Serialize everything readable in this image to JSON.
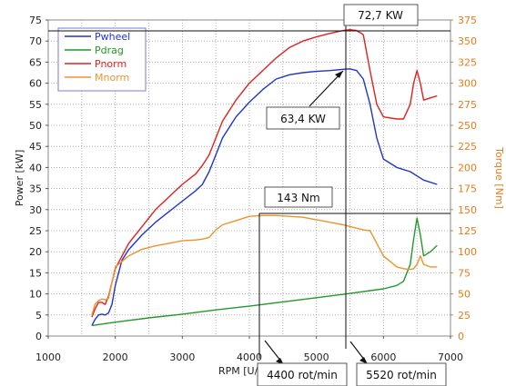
{
  "chart_data": {
    "type": "line",
    "xlabel": "RPM [U/",
    "ylabel": "Power [kW]",
    "y2label": "Torque [Nm]",
    "xlim": [
      1000,
      7000
    ],
    "ylim": [
      0,
      75
    ],
    "y2lim": [
      0,
      375
    ],
    "xticks": [
      "1000",
      "2000",
      "3000",
      "4000",
      "5000",
      "6000",
      "7000"
    ],
    "yticks": [
      "0",
      "5",
      "10",
      "15",
      "20",
      "25",
      "30",
      "35",
      "40",
      "45",
      "50",
      "55",
      "60",
      "65",
      "70",
      "75"
    ],
    "y2ticks": [
      "0",
      "25",
      "50",
      "75",
      "100",
      "125",
      "150",
      "175",
      "200",
      "225",
      "250",
      "275",
      "300",
      "325",
      "350",
      "375"
    ],
    "grid": true,
    "legend_position": "top-left",
    "series": [
      {
        "name": "Pwheel",
        "color": "#2233cc",
        "axis": "left",
        "x": [
          1650,
          1700,
          1750,
          1800,
          1850,
          1900,
          1950,
          2000,
          2100,
          2200,
          2400,
          2600,
          2800,
          3000,
          3200,
          3300,
          3400,
          3500,
          3600,
          3800,
          4000,
          4200,
          4400,
          4600,
          4800,
          5000,
          5200,
          5400,
          5500,
          5600,
          5700,
          5800,
          5900,
          6000,
          6200,
          6400,
          6600,
          6800
        ],
        "y": [
          2.5,
          4,
          5,
          5.2,
          5,
          5.5,
          7.5,
          12,
          18,
          20.5,
          24,
          27,
          29.5,
          32,
          34.5,
          36,
          39,
          43,
          47,
          52,
          55.5,
          58.5,
          61,
          62,
          62.5,
          62.8,
          63,
          63.3,
          63.4,
          63,
          61,
          55,
          47,
          42,
          40,
          39,
          37,
          36
        ]
      },
      {
        "name": "Pdrag",
        "color": "#22992a",
        "axis": "left",
        "x": [
          1650,
          2000,
          2500,
          3000,
          3500,
          4000,
          4500,
          5000,
          5500,
          6000,
          6200,
          6300,
          6400,
          6450,
          6500,
          6550,
          6600,
          6700,
          6800
        ],
        "y": [
          2.5,
          3.3,
          4.3,
          5.2,
          6.2,
          7.1,
          8.1,
          9.1,
          10.1,
          11.2,
          12,
          13,
          17,
          23,
          28,
          24,
          19,
          20,
          21.5
        ]
      },
      {
        "name": "Pnorm",
        "color": "#e02020",
        "axis": "left",
        "x": [
          1650,
          1700,
          1750,
          1800,
          1850,
          1900,
          2000,
          2200,
          2400,
          2600,
          2800,
          3000,
          3200,
          3300,
          3400,
          3500,
          3600,
          3800,
          4000,
          4200,
          4400,
          4600,
          4800,
          5000,
          5200,
          5400,
          5500,
          5600,
          5700,
          5800,
          5900,
          6000,
          6200,
          6300,
          6400,
          6450,
          6500,
          6550,
          6600,
          6700,
          6800
        ],
        "y": [
          4.5,
          6.5,
          8,
          8,
          7.5,
          9.5,
          16,
          22,
          26,
          30,
          33,
          36,
          38.5,
          40.5,
          43,
          47,
          51,
          56,
          60,
          63,
          66,
          68.5,
          70,
          71,
          71.8,
          72.5,
          72.7,
          72.5,
          71.5,
          63,
          55,
          52,
          51.5,
          51.5,
          55,
          60,
          63,
          60,
          56,
          56.5,
          57
        ]
      },
      {
        "name": "Mnorm",
        "color": "#f0922c",
        "axis": "right",
        "x": [
          1650,
          1700,
          1750,
          1800,
          1850,
          1900,
          2000,
          2200,
          2400,
          2600,
          2800,
          3000,
          3200,
          3300,
          3400,
          3500,
          3600,
          3800,
          4000,
          4200,
          4400,
          4600,
          4800,
          5000,
          5200,
          5400,
          5500,
          5600,
          5700,
          5800,
          5900,
          6000,
          6200,
          6300,
          6400,
          6450,
          6500,
          6550,
          6600,
          6700,
          6800
        ],
        "y": [
          25,
          38,
          42,
          44,
          43,
          45,
          82,
          95,
          103,
          107,
          110,
          113,
          114,
          115,
          117,
          126,
          132,
          137,
          142,
          143,
          143,
          142,
          141,
          138,
          135,
          132,
          130,
          128,
          126,
          125,
          110,
          95,
          82,
          80,
          79,
          80,
          85,
          95,
          85,
          82,
          82
        ]
      }
    ],
    "annotations": [
      {
        "text": "72,7 KW"
      },
      {
        "text": "63,4 KW"
      },
      {
        "text": "143 Nm"
      },
      {
        "text": "4400 rot/min"
      },
      {
        "text": "5520 rot/min"
      }
    ]
  }
}
